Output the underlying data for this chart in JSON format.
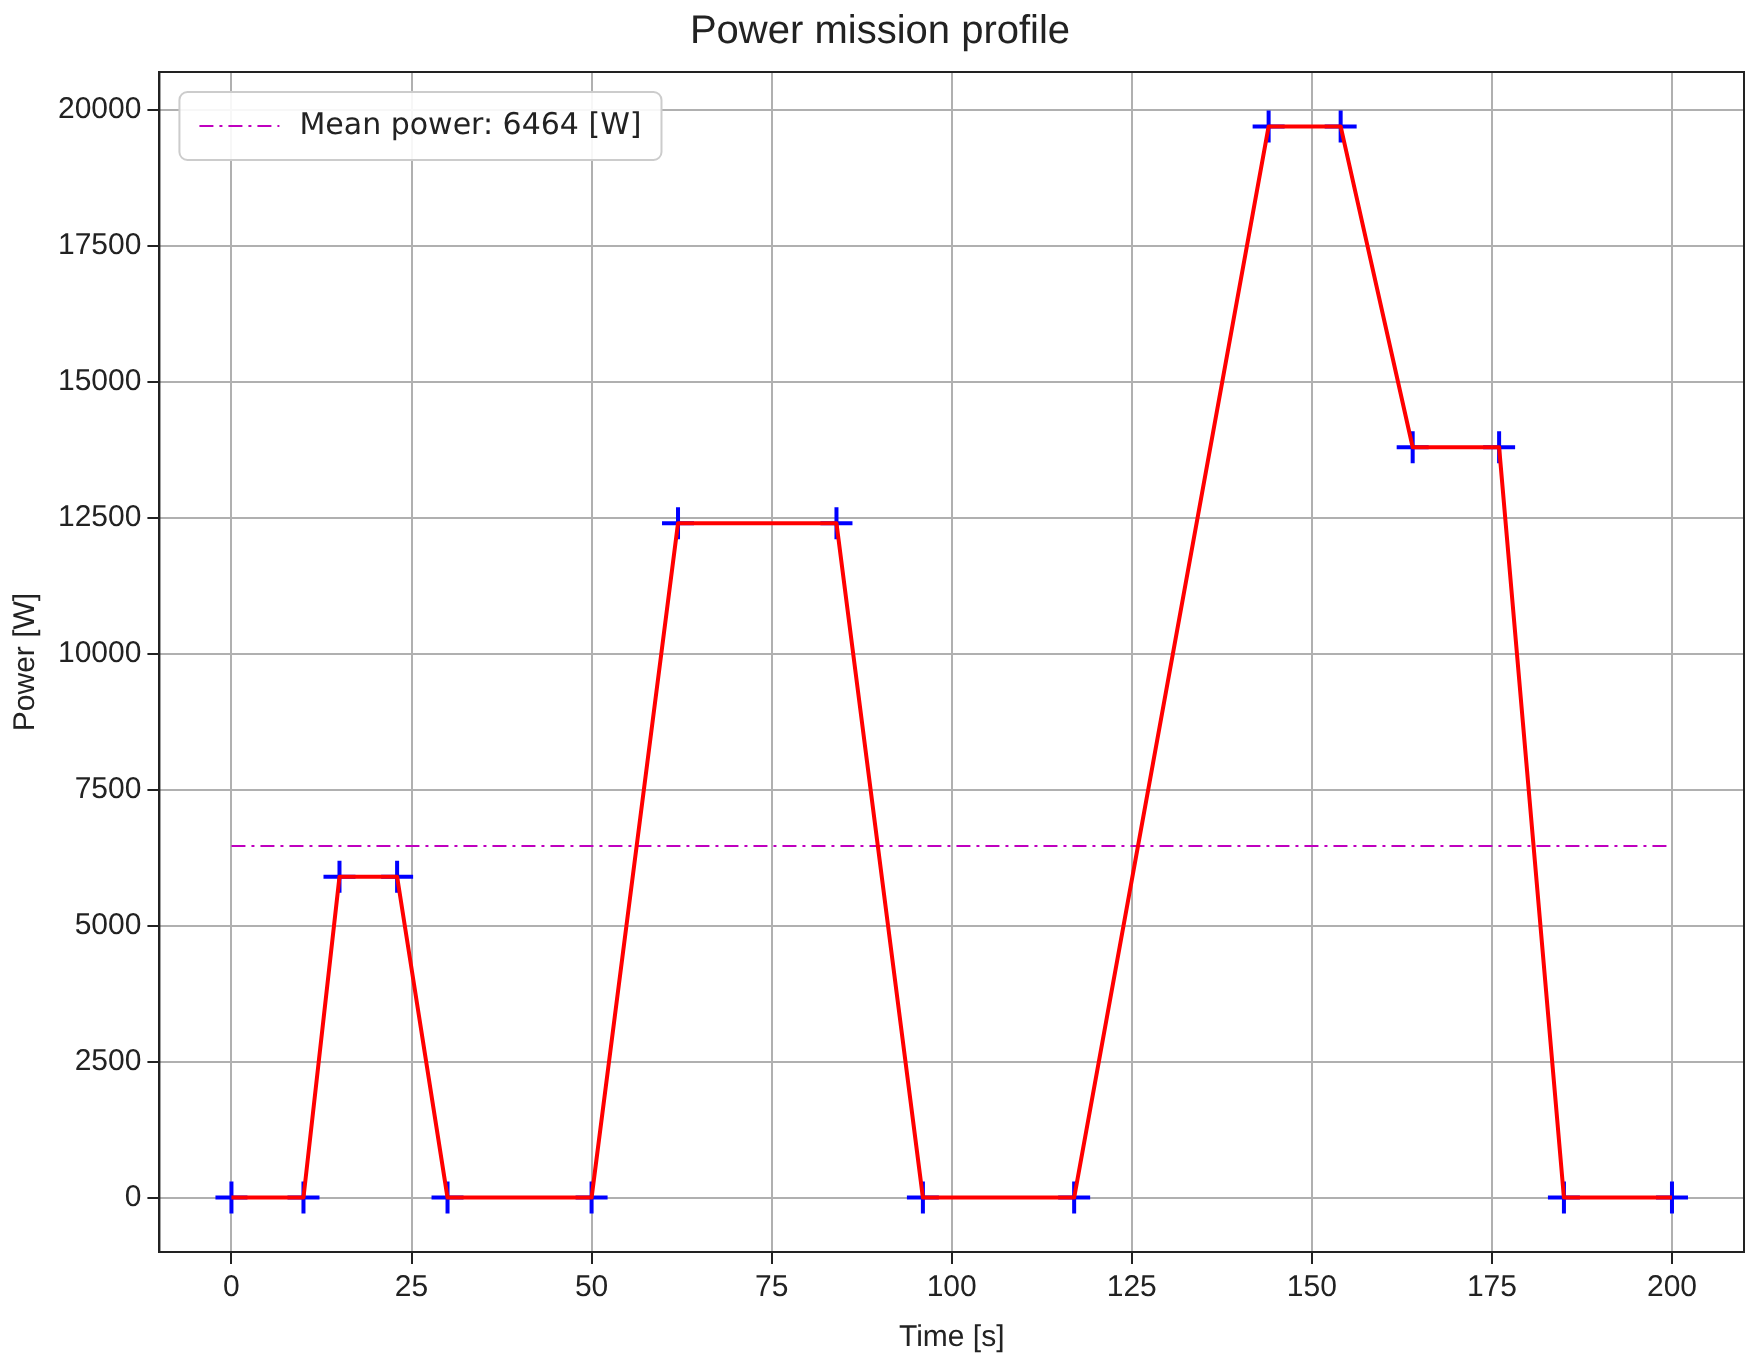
{
  "chart_data": {
    "type": "line",
    "title": "Power mission profile",
    "xlabel": "Time [s]",
    "ylabel": "Power [W]",
    "x": [
      0,
      10,
      15,
      23,
      30,
      50,
      62,
      84,
      96,
      117,
      144,
      154,
      164,
      176,
      185,
      200
    ],
    "series": [
      {
        "color": "#ff0000",
        "marker": "none",
        "values": [
          0,
          0,
          5900,
          5900,
          0,
          0,
          12400,
          12400,
          0,
          0,
          19700,
          19700,
          13800,
          13800,
          0,
          0
        ]
      },
      {
        "type": "scatter",
        "color": "#0000ff",
        "marker": "cross",
        "values": [
          0,
          0,
          5900,
          5900,
          0,
          0,
          12400,
          12400,
          0,
          0,
          19700,
          19700,
          13800,
          13800,
          0,
          0
        ]
      }
    ],
    "ref_lines": [
      {
        "axis": "y",
        "value": 6464,
        "label": "Mean power: 6464 [W]",
        "color": "#bf00bf",
        "line_style": "dashed"
      }
    ],
    "xlim": [
      -10,
      210
    ],
    "ylim": [
      -1000,
      20700
    ],
    "xticks": [
      0,
      25,
      50,
      75,
      100,
      125,
      150,
      175,
      200
    ],
    "yticks": [
      0,
      2500,
      5000,
      7500,
      10000,
      12500,
      15000,
      17500,
      20000
    ],
    "grid": true,
    "legend": "top left",
    "line_style": "solid"
  }
}
